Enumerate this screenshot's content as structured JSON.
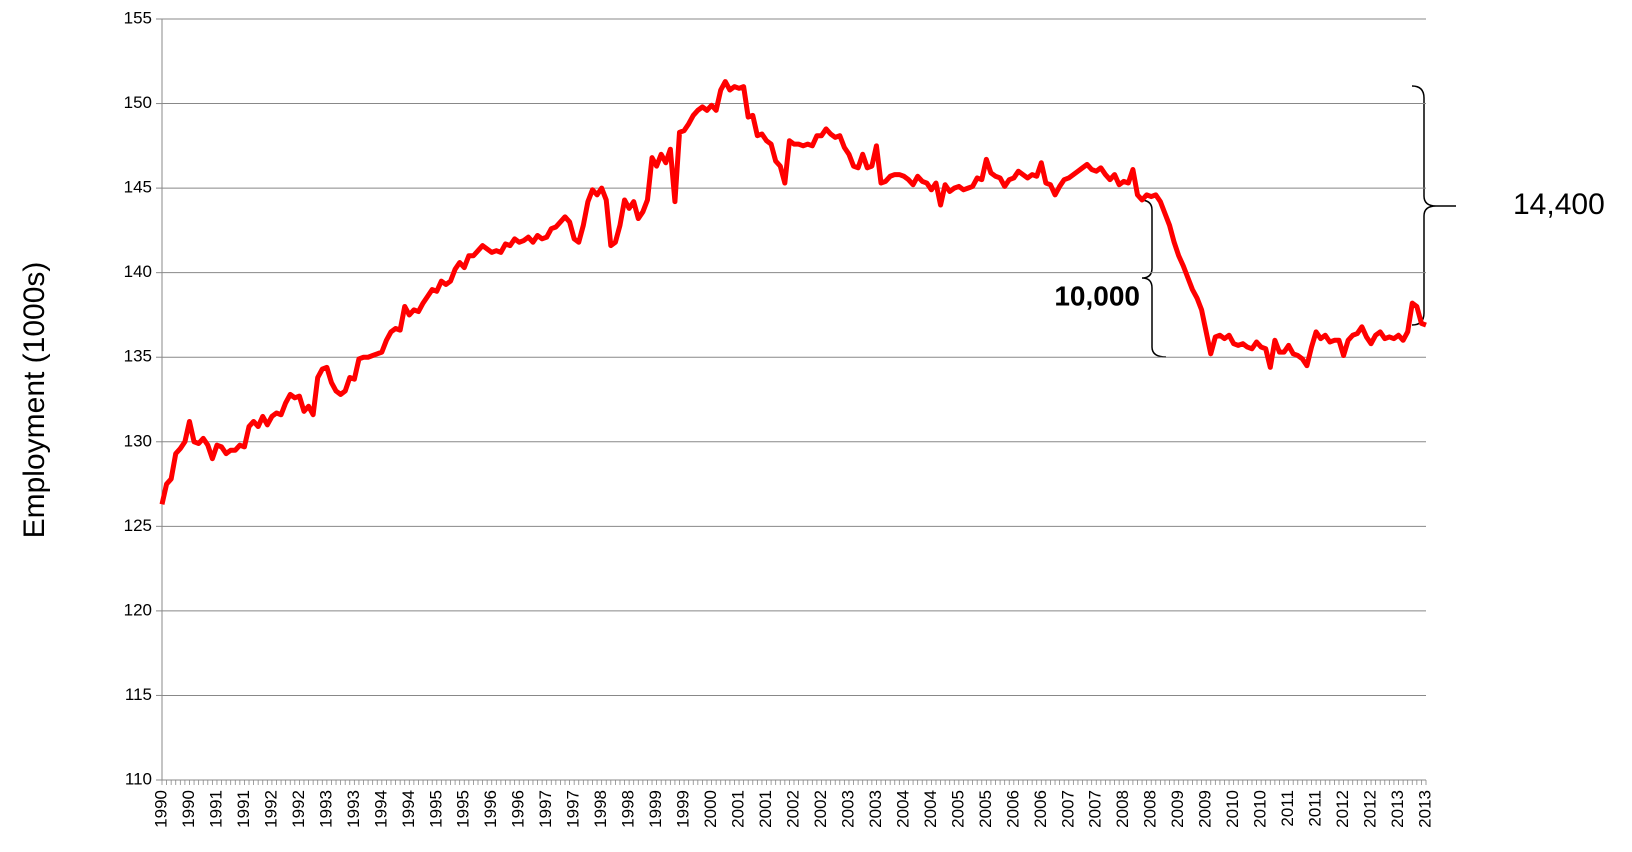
{
  "chart_data": {
    "type": "line",
    "ylabel": "Employment (1000s)",
    "ylim": [
      110,
      155
    ],
    "yticks": [
      110,
      115,
      120,
      125,
      130,
      135,
      140,
      145,
      150,
      155
    ],
    "grid": true,
    "annotations": [
      "14,400",
      "10,000"
    ],
    "categories": [
      "1990",
      null,
      null,
      null,
      null,
      null,
      "1990",
      null,
      null,
      null,
      null,
      null,
      "1991",
      null,
      null,
      null,
      null,
      null,
      "1991",
      null,
      null,
      null,
      null,
      null,
      "1992",
      null,
      null,
      null,
      null,
      null,
      "1992",
      null,
      null,
      null,
      null,
      null,
      "1993",
      null,
      null,
      null,
      null,
      null,
      "1993",
      null,
      null,
      null,
      null,
      null,
      "1994",
      null,
      null,
      null,
      null,
      null,
      "1994",
      null,
      null,
      null,
      null,
      null,
      "1995",
      null,
      null,
      null,
      null,
      null,
      "1995",
      null,
      null,
      null,
      null,
      null,
      "1996",
      null,
      null,
      null,
      null,
      null,
      "1996",
      null,
      null,
      null,
      null,
      null,
      "1997",
      null,
      null,
      null,
      null,
      null,
      "1997",
      null,
      null,
      null,
      null,
      null,
      "1998",
      null,
      null,
      null,
      null,
      null,
      "1998",
      null,
      null,
      null,
      null,
      null,
      "1999",
      null,
      null,
      null,
      null,
      null,
      "1999",
      null,
      null,
      null,
      null,
      null,
      "2000",
      null,
      null,
      null,
      null,
      null,
      "2001",
      null,
      null,
      null,
      null,
      null,
      "2001",
      null,
      null,
      null,
      null,
      null,
      "2002",
      null,
      null,
      null,
      null,
      null,
      "2002",
      null,
      null,
      null,
      null,
      null,
      "2003",
      null,
      null,
      null,
      null,
      null,
      "2003",
      null,
      null,
      null,
      null,
      null,
      "2004",
      null,
      null,
      null,
      null,
      null,
      "2004",
      null,
      null,
      null,
      null,
      null,
      "2005",
      null,
      null,
      null,
      null,
      null,
      "2005",
      null,
      null,
      null,
      null,
      null,
      "2006",
      null,
      null,
      null,
      null,
      null,
      "2006",
      null,
      null,
      null,
      null,
      null,
      "2007",
      null,
      null,
      null,
      null,
      null,
      "2007",
      null,
      null,
      null,
      null,
      null,
      "2008",
      null,
      null,
      null,
      null,
      null,
      "2008",
      null,
      null,
      null,
      null,
      null,
      "2009",
      null,
      null,
      null,
      null,
      null,
      "2009",
      null,
      null,
      null,
      null,
      null,
      "2010",
      null,
      null,
      null,
      null,
      null,
      "2010",
      null,
      null,
      null,
      null,
      null,
      "2011",
      null,
      null,
      null,
      null,
      null,
      "2011",
      null,
      null,
      null,
      null,
      null,
      "2012",
      null,
      null,
      null,
      null,
      null,
      "2012",
      null,
      null,
      null,
      null,
      null,
      "2013",
      null,
      null,
      null,
      null,
      null,
      "2013"
    ],
    "series": [
      {
        "color": "#ff0000",
        "values": [
          126.3,
          127.5,
          127.8,
          129.3,
          129.6,
          130.0,
          131.2,
          130.0,
          129.9,
          130.2,
          129.8,
          129.0,
          129.8,
          129.7,
          129.3,
          129.5,
          129.5,
          129.8,
          129.7,
          130.9,
          131.2,
          130.9,
          131.5,
          131.0,
          131.5,
          131.7,
          131.6,
          132.3,
          132.8,
          132.6,
          132.7,
          131.8,
          132.1,
          131.6,
          133.8,
          134.3,
          134.4,
          133.5,
          133.0,
          132.8,
          133.0,
          133.8,
          133.7,
          134.9,
          135.0,
          135.0,
          135.1,
          135.2,
          135.3,
          136.0,
          136.5,
          136.7,
          136.6,
          138.0,
          137.5,
          137.8,
          137.7,
          138.2,
          138.6,
          139.0,
          138.9,
          139.5,
          139.3,
          139.5,
          140.2,
          140.6,
          140.3,
          141.0,
          141.0,
          141.3,
          141.6,
          141.4,
          141.2,
          141.3,
          141.2,
          141.7,
          141.6,
          142.0,
          141.8,
          141.9,
          142.1,
          141.8,
          142.2,
          142.0,
          142.1,
          142.6,
          142.7,
          143.0,
          143.3,
          143.0,
          142.0,
          141.8,
          142.8,
          144.2,
          144.9,
          144.6,
          145.0,
          144.3,
          141.6,
          141.8,
          142.8,
          144.3,
          143.8,
          144.2,
          143.2,
          143.6,
          144.3,
          146.8,
          146.3,
          147.0,
          146.5,
          147.3,
          144.2,
          148.3,
          148.4,
          148.8,
          149.3,
          149.6,
          149.8,
          149.6,
          149.9,
          149.6,
          150.8,
          151.3,
          150.8,
          151.0,
          150.9,
          151.0,
          149.2,
          149.3,
          148.1,
          148.2,
          147.8,
          147.6,
          146.6,
          146.3,
          145.3,
          147.8,
          147.6,
          147.6,
          147.5,
          147.6,
          147.5,
          148.1,
          148.1,
          148.5,
          148.2,
          148.0,
          148.1,
          147.4,
          147.0,
          146.3,
          146.2,
          147.0,
          146.2,
          146.3,
          147.5,
          145.3,
          145.4,
          145.7,
          145.8,
          145.8,
          145.7,
          145.5,
          145.2,
          145.7,
          145.4,
          145.3,
          144.9,
          145.3,
          144.0,
          145.2,
          144.8,
          145.0,
          145.1,
          144.9,
          145.0,
          145.1,
          145.6,
          145.5,
          146.7,
          145.9,
          145.7,
          145.6,
          145.1,
          145.5,
          145.6,
          146.0,
          145.8,
          145.6,
          145.8,
          145.7,
          146.5,
          145.3,
          145.2,
          144.6,
          145.1,
          145.5,
          145.6,
          145.8,
          146.0,
          146.2,
          146.4,
          146.1,
          146.0,
          146.2,
          145.8,
          145.5,
          145.8,
          145.2,
          145.4,
          145.3,
          146.1,
          144.6,
          144.3,
          144.6,
          144.5,
          144.6,
          144.2,
          143.5,
          142.8,
          141.8,
          141.0,
          140.4,
          139.7,
          139.0,
          138.5,
          137.8,
          136.5,
          135.2,
          136.2,
          136.3,
          136.1,
          136.3,
          135.8,
          135.7,
          135.8,
          135.6,
          135.5,
          135.9,
          135.6,
          135.5,
          134.4,
          136.0,
          135.3,
          135.3,
          135.7,
          135.2,
          135.1,
          134.9,
          134.5,
          135.6,
          136.5,
          136.1,
          136.3,
          135.9,
          136.0,
          136.0,
          135.1,
          136.0,
          136.3,
          136.4,
          136.8,
          136.2,
          135.8,
          136.3,
          136.5,
          136.1,
          136.2,
          136.1,
          136.3,
          136.0,
          136.5,
          138.2,
          138.0,
          137.0,
          136.9
        ]
      }
    ]
  }
}
